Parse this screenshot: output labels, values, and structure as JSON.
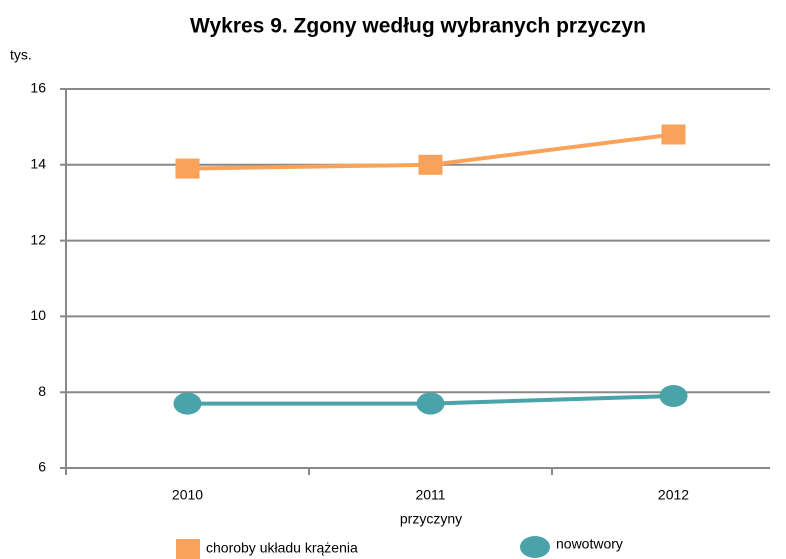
{
  "chart_data": {
    "type": "line",
    "title": "Wykres 9. Zgony według wybranych przyczyn",
    "y_label": "tys.",
    "x_label": "przyczyny",
    "categories": [
      "2010",
      "2011",
      "2012"
    ],
    "series": [
      {
        "name": "choroby układu krążenia",
        "color": "#f9a25a",
        "marker": "square",
        "values": [
          13.9,
          14.0,
          14.8
        ]
      },
      {
        "name": "nowotwory",
        "color": "#4aa3a8",
        "marker": "circle",
        "values": [
          7.7,
          7.7,
          7.9
        ]
      }
    ],
    "ylim": [
      6,
      16
    ],
    "yticks": [
      6,
      8,
      10,
      12,
      14,
      16
    ],
    "grid": true,
    "legend": "bottom"
  }
}
